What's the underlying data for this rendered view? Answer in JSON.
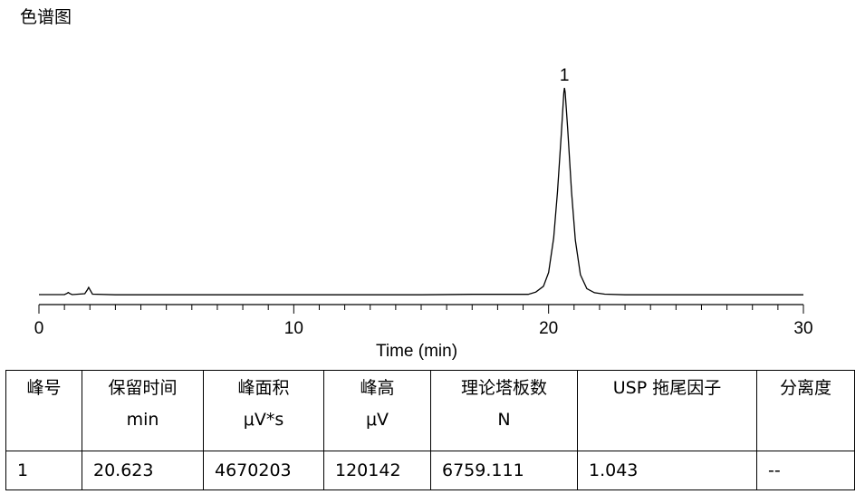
{
  "page": {
    "title": "色谱图"
  },
  "chart_data": {
    "type": "line",
    "title": "",
    "xlabel": "Time (min)",
    "ylabel": "",
    "xlim": [
      0,
      30
    ],
    "xticks": [
      0,
      10,
      20,
      30
    ],
    "series": [
      {
        "x": [
          0,
          1.0,
          1.1,
          1.15,
          1.2,
          1.3,
          1.8,
          1.9,
          1.95,
          2.0,
          2.1,
          3,
          5,
          10,
          12.8,
          15,
          17,
          19.2,
          19.5,
          19.8,
          20.0,
          20.2,
          20.35,
          20.5,
          20.6,
          20.623,
          20.65,
          20.75,
          20.9,
          21.05,
          21.25,
          21.5,
          21.8,
          22.2,
          23,
          25,
          30
        ],
        "y": [
          0.4,
          0.4,
          0.9,
          1.3,
          0.9,
          0.4,
          0.8,
          2.5,
          3.5,
          2.5,
          0.6,
          0.3,
          0.3,
          0.3,
          0.3,
          0.3,
          0.5,
          0.5,
          1.5,
          4,
          10,
          25,
          45,
          70,
          88,
          90,
          88,
          72,
          45,
          24,
          9,
          3,
          1.2,
          0.6,
          0.3,
          0.3,
          0.3
        ]
      }
    ],
    "peaks": [
      {
        "label": "1",
        "x": 20.623,
        "y": 90
      }
    ]
  },
  "table": {
    "headers": [
      {
        "name": "峰号",
        "unit": ""
      },
      {
        "name": "保留时间",
        "unit": "min"
      },
      {
        "name": "峰面积",
        "unit": "μV*s"
      },
      {
        "name": "峰高",
        "unit": "μV"
      },
      {
        "name": "理论塔板数",
        "unit": "N"
      },
      {
        "name": "USP 拖尾因子",
        "unit": ""
      },
      {
        "name": "分离度",
        "unit": ""
      }
    ],
    "rows": [
      [
        "1",
        "20.623",
        "4670203",
        "120142",
        "6759.111",
        "1.043",
        "--"
      ]
    ]
  }
}
